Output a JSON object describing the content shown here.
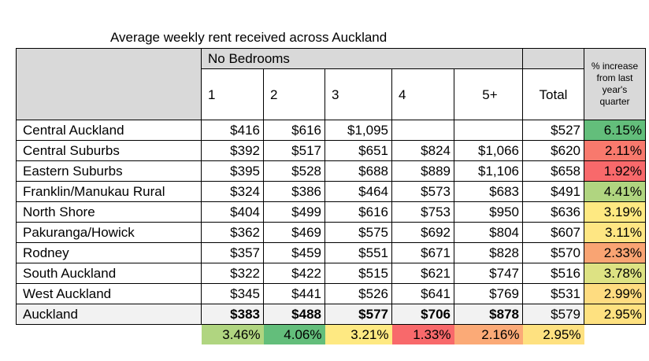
{
  "title": "Average weekly rent received across Auckland",
  "header": {
    "group_label": "No Bedrooms",
    "columns": [
      "1",
      "2",
      "3",
      "4",
      "5+"
    ],
    "total_label": "Total",
    "pct_label": "% increase from last year's quarter"
  },
  "rows": [
    {
      "name": "Central Auckland",
      "values": [
        "$416",
        "$616",
        "$1,095",
        "",
        ""
      ],
      "total": "$527",
      "pct": "6.15%",
      "pct_color": "#63be7b"
    },
    {
      "name": "Central Suburbs",
      "values": [
        "$392",
        "$517",
        "$651",
        "$824",
        "$1,066"
      ],
      "total": "$620",
      "pct": "2.11%",
      "pct_color": "#f8796d"
    },
    {
      "name": "Eastern Suburbs",
      "values": [
        "$395",
        "$528",
        "$688",
        "$889",
        "$1,106"
      ],
      "total": "$658",
      "pct": "1.92%",
      "pct_color": "#f8696b"
    },
    {
      "name": "Franklin/Manukau Rural",
      "values": [
        "$324",
        "$386",
        "$464",
        "$573",
        "$683"
      ],
      "total": "$491",
      "pct": "4.41%",
      "pct_color": "#b0d580"
    },
    {
      "name": "North Shore",
      "values": [
        "$404",
        "$499",
        "$616",
        "$753",
        "$950"
      ],
      "total": "$636",
      "pct": "3.19%",
      "pct_color": "#fee982"
    },
    {
      "name": "Pakuranga/Howick",
      "values": [
        "$362",
        "$469",
        "$575",
        "$692",
        "$804"
      ],
      "total": "$607",
      "pct": "3.11%",
      "pct_color": "#fee683"
    },
    {
      "name": "Rodney",
      "values": [
        "$357",
        "$459",
        "$551",
        "$671",
        "$828"
      ],
      "total": "$570",
      "pct": "2.33%",
      "pct_color": "#f9a473"
    },
    {
      "name": "South Auckland",
      "values": [
        "$322",
        "$422",
        "$515",
        "$621",
        "$747"
      ],
      "total": "$516",
      "pct": "3.78%",
      "pct_color": "#dde283"
    },
    {
      "name": "West Auckland",
      "values": [
        "$345",
        "$441",
        "$526",
        "$641",
        "$769"
      ],
      "total": "$531",
      "pct": "2.99%",
      "pct_color": "#fedc80"
    }
  ],
  "total_row": {
    "name": "Auckland",
    "values": [
      "$383",
      "$488",
      "$577",
      "$706",
      "$878"
    ],
    "total": "$579",
    "pct": "2.95%",
    "pct_color": "#fee180"
  },
  "footer": [
    {
      "value": "3.46%",
      "color": "#b0d580"
    },
    {
      "value": "4.06%",
      "color": "#63be7b"
    },
    {
      "value": "3.21%",
      "color": "#fee982"
    },
    {
      "value": "1.33%",
      "color": "#f8696b"
    },
    {
      "value": "2.16%",
      "color": "#fbaa77"
    },
    {
      "value": "2.95%",
      "color": "#fee180"
    }
  ]
}
